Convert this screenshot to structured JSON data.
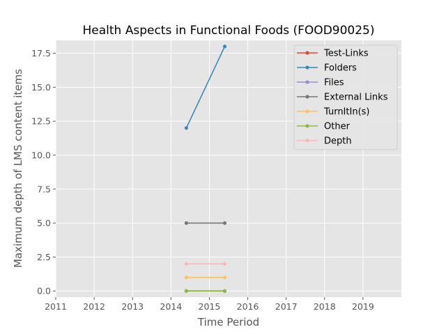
{
  "chart_data": {
    "type": "line",
    "title": "Health Aspects in Functional Foods (FOOD90025)",
    "xlabel": "Time Period",
    "ylabel": "Maximum depth of LMS content items",
    "xlim": [
      2011,
      2020
    ],
    "ylim": [
      -0.45,
      18.45
    ],
    "xticks": [
      2011,
      2012,
      2013,
      2014,
      2015,
      2016,
      2017,
      2018,
      2019
    ],
    "xtick_labels": [
      "2011",
      "2012",
      "2013",
      "2014",
      "2015",
      "2016",
      "2017",
      "2018",
      "2019"
    ],
    "yticks": [
      0,
      2.5,
      5,
      7.5,
      10,
      12.5,
      15,
      17.5
    ],
    "ytick_labels": [
      "0.0",
      "2.5",
      "5.0",
      "7.5",
      "10.0",
      "12.5",
      "15.0",
      "17.5"
    ],
    "grid": true,
    "legend_position": "top-right",
    "x": [
      2014.4,
      2015.4
    ],
    "series": [
      {
        "name": "Test-Links",
        "color": "#E24A33",
        "values": [
          0,
          0
        ]
      },
      {
        "name": "Folders",
        "color": "#348ABD",
        "values": [
          12,
          18
        ]
      },
      {
        "name": "Files",
        "color": "#988ED5",
        "values": [
          0,
          0
        ]
      },
      {
        "name": "External Links",
        "color": "#777777",
        "values": [
          5,
          5
        ]
      },
      {
        "name": "TurnItIn(s)",
        "color": "#FBC15E",
        "values": [
          1,
          1
        ]
      },
      {
        "name": "Other",
        "color": "#8EBA42",
        "values": [
          0,
          0
        ]
      },
      {
        "name": "Depth",
        "color": "#FFB5B8",
        "values": [
          2,
          2
        ]
      }
    ]
  }
}
